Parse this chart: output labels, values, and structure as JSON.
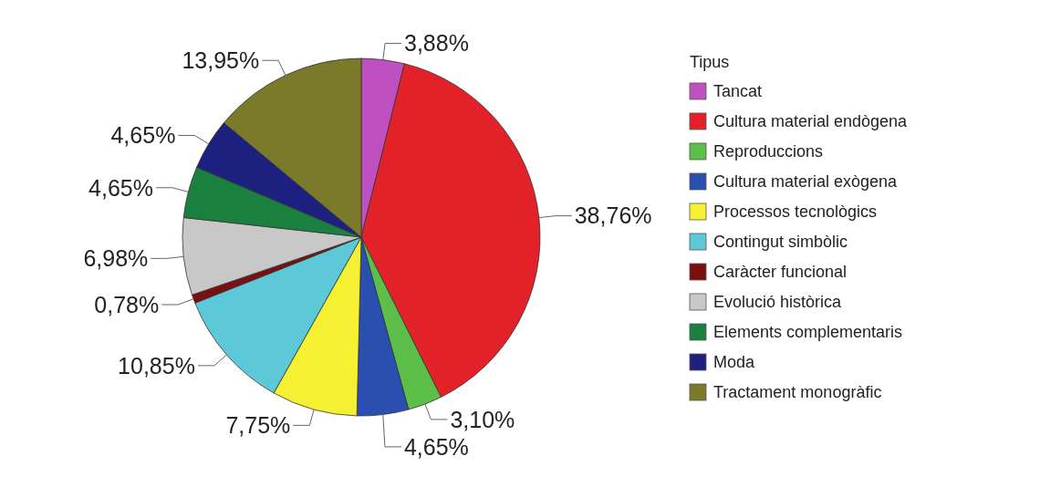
{
  "chart_data": {
    "type": "pie",
    "legend_title": "Tipus",
    "legend": "right",
    "categories": [
      "Tancat",
      "Cultura material endògena",
      "Reproduccions",
      "Cultura material exògena",
      "Processos tecnològics",
      "Contingut simbòlic",
      "Caràcter funcional",
      "Evolució històrica",
      "Elements complementaris",
      "Moda",
      "Tractament monogràfic"
    ],
    "values": [
      3.88,
      38.76,
      3.1,
      4.65,
      7.75,
      10.85,
      0.78,
      6.98,
      4.65,
      4.65,
      13.95
    ],
    "value_labels": [
      "3,88%",
      "38,76%",
      "3,10%",
      "4,65%",
      "7,75%",
      "10,85%",
      "0,78%",
      "6,98%",
      "4,65%",
      "4,65%",
      "13,95%"
    ],
    "colors": [
      "#c050c0",
      "#e32128",
      "#5cbf4a",
      "#2a4fb0",
      "#f5f032",
      "#5cc8d8",
      "#7a1010",
      "#c8c8c8",
      "#1a8040",
      "#1e2080",
      "#7a7a2a"
    ]
  }
}
